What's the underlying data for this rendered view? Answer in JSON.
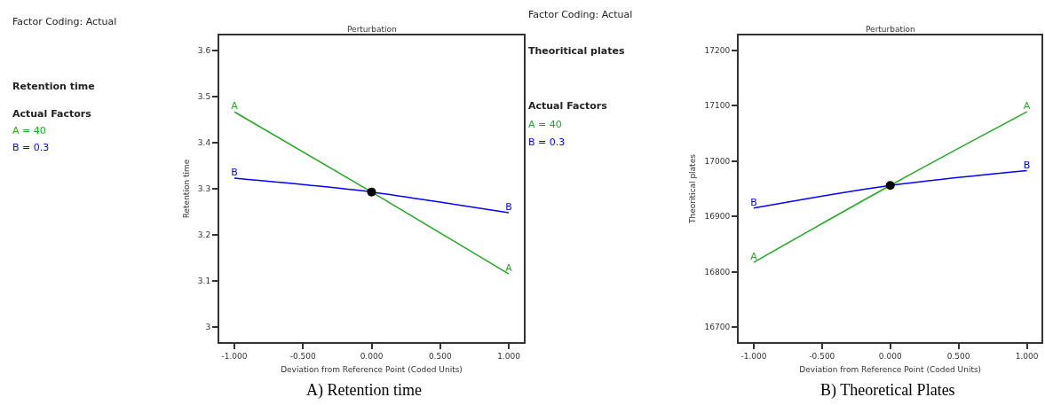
{
  "chart_data": [
    {
      "type": "line",
      "title": "Perturbation",
      "xlabel": "Deviation from Reference Point (Coded Units)",
      "ylabel": "Retention time",
      "annotations": [
        "Factor Coding: Actual",
        "Retention time",
        "Actual Factors",
        "A = 40",
        "B = 0.3",
        "A) Retention time"
      ],
      "xlim": [
        -1.11,
        1.11
      ],
      "xticks": [
        {
          "value": -1,
          "label": "-1.000"
        },
        {
          "value": -0.5,
          "label": "-0.500"
        },
        {
          "value": 0,
          "label": "0.000"
        },
        {
          "value": 0.5,
          "label": "0.500"
        },
        {
          "value": 1,
          "label": "1.000"
        }
      ],
      "ylim": [
        2.967,
        3.633
      ],
      "yticks": [
        3,
        3.1,
        3.2,
        3.3,
        3.4,
        3.5,
        3.6
      ],
      "legend": false,
      "marker": "none",
      "series": [
        {
          "name": "A",
          "color": "#22aa22",
          "x": [
            -1,
            0,
            1
          ],
          "values": [
            3.467,
            3.293,
            3.115
          ]
        },
        {
          "name": "B",
          "color": "#0000ff",
          "x": [
            -1,
            -0.5,
            0,
            0.5,
            1
          ],
          "values": [
            3.323,
            3.309,
            3.293,
            3.271,
            3.248
          ]
        },
        {
          "type": "scatter",
          "marker": "circle",
          "color": "#000000",
          "x": [
            0
          ],
          "values": [
            3.293
          ]
        }
      ]
    },
    {
      "type": "line",
      "title": "Perturbation",
      "xlabel": "Deviation from Reference Point (Coded Units)",
      "ylabel": "Theoritical plates",
      "annotations": [
        "Factor Coding: Actual",
        "Theoritical plates",
        "Actual Factors",
        "A = 40",
        "B = 0.3",
        "B) Theoretical Plates"
      ],
      "xlim": [
        -1.11,
        1.11
      ],
      "xticks": [
        {
          "value": -1,
          "label": "-1.000"
        },
        {
          "value": -0.5,
          "label": "-0.500"
        },
        {
          "value": 0,
          "label": "0.000"
        },
        {
          "value": 0.5,
          "label": "0.500"
        },
        {
          "value": 1,
          "label": "1.000"
        }
      ],
      "ylim": [
        16673,
        17227
      ],
      "yticks": [
        16700,
        16800,
        16900,
        17000,
        17100,
        17200
      ],
      "legend": false,
      "marker": "none",
      "series": [
        {
          "name": "A",
          "color": "#22aa22",
          "x": [
            -1,
            0,
            1
          ],
          "values": [
            16817,
            16956,
            17089
          ]
        },
        {
          "name": "B",
          "color": "#0000ff",
          "x": [
            -1,
            0,
            1
          ],
          "values": [
            16915,
            16956,
            16983
          ]
        },
        {
          "type": "scatter",
          "marker": "circle",
          "color": "#000000",
          "x": [
            0
          ],
          "values": [
            16956
          ]
        }
      ]
    }
  ]
}
